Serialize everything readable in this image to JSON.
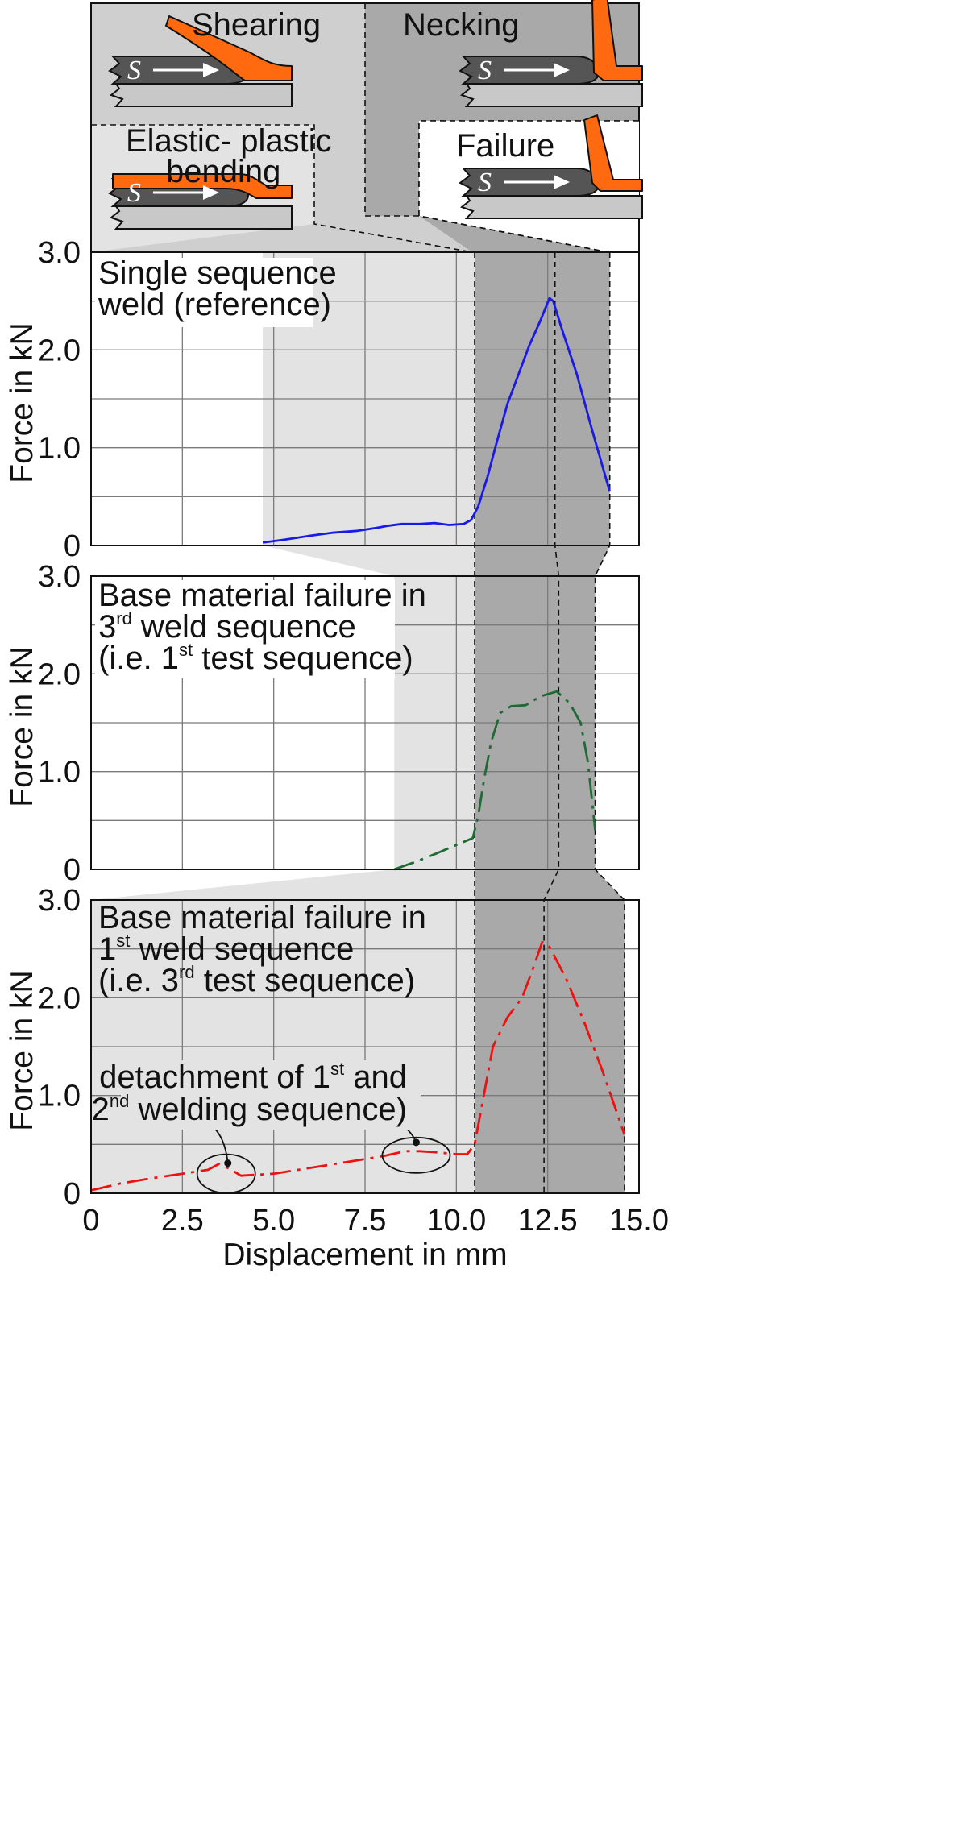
{
  "phases": {
    "shearing": "Shearing",
    "necking": "Necking",
    "bending_line1": "Elastic- plastic",
    "bending_line2": "bending",
    "failure": "Failure",
    "symbol": "S"
  },
  "axes": {
    "ylabel": "Force in kN",
    "xlabel": "Displacement in mm",
    "x_ticks": [
      "0",
      "2.5",
      "5.0",
      "7.5",
      "10.0",
      "12.5",
      "15.0"
    ],
    "y_ticks": [
      "0",
      "1.0",
      "2.0",
      "3.0"
    ]
  },
  "panels": [
    {
      "label_lines": [
        [
          {
            "t": "Single sequence"
          }
        ],
        [
          {
            "t": "weld (reference)"
          }
        ]
      ]
    },
    {
      "label_lines": [
        [
          {
            "t": "Base material failure in"
          }
        ],
        [
          {
            "t": "3"
          },
          {
            "t": "rd",
            "sup": true
          },
          {
            "t": " weld sequence"
          }
        ],
        [
          {
            "t": "(i.e. 1"
          },
          {
            "t": "st",
            "sup": true
          },
          {
            "t": " test sequence)"
          }
        ]
      ]
    },
    {
      "label_lines": [
        [
          {
            "t": "Base material failure in"
          }
        ],
        [
          {
            "t": "1"
          },
          {
            "t": "st",
            "sup": true
          },
          {
            "t": " weld sequence"
          }
        ],
        [
          {
            "t": "(i.e. 3"
          },
          {
            "t": "rd",
            "sup": true
          },
          {
            "t": " test sequence)"
          }
        ]
      ],
      "annotation_lines": [
        [
          {
            "t": "detachment of 1"
          },
          {
            "t": "st",
            "sup": true
          },
          {
            "t": " and"
          }
        ],
        [
          {
            "t": "2"
          },
          {
            "t": "nd",
            "sup": true
          },
          {
            "t": " welding sequence)"
          }
        ]
      ]
    }
  ],
  "colors": {
    "series_blue": "#1a1ae6",
    "series_green": "#1f6b35",
    "series_red": "#ee1111",
    "bending_zone": "#e3e3e3",
    "shearing_zone": "#cfcfcf",
    "necking_zone": "#a9a9a9",
    "failure_zone": "#ffffff",
    "sheet_orange": "#ff6a10",
    "weld_dark": "#555555",
    "base_plate": "#c8c8c8"
  },
  "chart_data": [
    {
      "type": "line",
      "title": "Single sequence weld (reference)",
      "xlabel": "Displacement in mm",
      "ylabel": "Force in kN",
      "xlim": [
        0,
        15
      ],
      "ylim": [
        0,
        3
      ],
      "grid": true,
      "series": [
        {
          "style": "solid",
          "color": "#1a1ae6",
          "points": [
            [
              4.7,
              0.03
            ],
            [
              5.3,
              0.06
            ],
            [
              6.0,
              0.1
            ],
            [
              6.6,
              0.13
            ],
            [
              7.3,
              0.15
            ],
            [
              7.8,
              0.18
            ],
            [
              8.1,
              0.2
            ],
            [
              8.5,
              0.22
            ],
            [
              9.0,
              0.22
            ],
            [
              9.4,
              0.23
            ],
            [
              9.8,
              0.21
            ],
            [
              10.2,
              0.22
            ],
            [
              10.4,
              0.26
            ],
            [
              10.6,
              0.4
            ],
            [
              10.85,
              0.7
            ],
            [
              11.1,
              1.05
            ],
            [
              11.4,
              1.45
            ],
            [
              11.7,
              1.75
            ],
            [
              12.0,
              2.05
            ],
            [
              12.3,
              2.3
            ],
            [
              12.55,
              2.53
            ],
            [
              12.65,
              2.5
            ],
            [
              12.9,
              2.2
            ],
            [
              13.3,
              1.75
            ],
            [
              13.7,
              1.2
            ],
            [
              14.2,
              0.55
            ]
          ]
        }
      ],
      "phase_boundaries_mm": {
        "bending_start": 4.7,
        "necking_start": 10.5,
        "necking_end": 12.7,
        "failure_end": 14.2
      }
    },
    {
      "type": "line",
      "title": "Base material failure in 3rd weld sequence (i.e. 1st test sequence)",
      "xlabel": "Displacement in mm",
      "ylabel": "Force in kN",
      "xlim": [
        0,
        15
      ],
      "ylim": [
        0,
        3
      ],
      "grid": true,
      "series": [
        {
          "style": "dash-dot",
          "color": "#1f6b35",
          "points": [
            [
              8.3,
              0.0
            ],
            [
              8.9,
              0.08
            ],
            [
              9.5,
              0.17
            ],
            [
              10.0,
              0.25
            ],
            [
              10.45,
              0.32
            ],
            [
              10.6,
              0.55
            ],
            [
              10.75,
              0.9
            ],
            [
              10.95,
              1.3
            ],
            [
              11.2,
              1.6
            ],
            [
              11.5,
              1.67
            ],
            [
              11.9,
              1.68
            ],
            [
              12.3,
              1.77
            ],
            [
              12.75,
              1.82
            ],
            [
              13.1,
              1.7
            ],
            [
              13.4,
              1.5
            ],
            [
              13.6,
              1.1
            ],
            [
              13.8,
              0.4
            ]
          ]
        }
      ],
      "phase_boundaries_mm": {
        "bending_start": 8.3,
        "necking_start": 10.5,
        "necking_end": 12.8,
        "failure_end": 13.8
      }
    },
    {
      "type": "line",
      "title": "Base material failure in 1st weld sequence (i.e. 3rd test sequence)",
      "xlabel": "Displacement in mm",
      "ylabel": "Force in kN",
      "xlim": [
        0,
        15
      ],
      "ylim": [
        0,
        3
      ],
      "grid": true,
      "series": [
        {
          "style": "dash-dot",
          "color": "#ee1111",
          "points": [
            [
              0.0,
              0.03
            ],
            [
              0.8,
              0.1
            ],
            [
              1.6,
              0.15
            ],
            [
              2.5,
              0.2
            ],
            [
              3.2,
              0.24
            ],
            [
              3.5,
              0.3
            ],
            [
              3.8,
              0.25
            ],
            [
              4.1,
              0.18
            ],
            [
              5.0,
              0.2
            ],
            [
              6.0,
              0.26
            ],
            [
              7.0,
              0.32
            ],
            [
              8.0,
              0.38
            ],
            [
              8.6,
              0.43
            ],
            [
              9.0,
              0.43
            ],
            [
              9.4,
              0.42
            ],
            [
              10.0,
              0.4
            ],
            [
              10.3,
              0.4
            ],
            [
              10.5,
              0.5
            ],
            [
              10.7,
              0.9
            ],
            [
              11.0,
              1.5
            ],
            [
              11.4,
              1.8
            ],
            [
              11.8,
              2.0
            ],
            [
              12.1,
              2.3
            ],
            [
              12.35,
              2.57
            ],
            [
              12.55,
              2.52
            ],
            [
              13.0,
              2.2
            ],
            [
              13.5,
              1.75
            ],
            [
              14.0,
              1.25
            ],
            [
              14.6,
              0.6
            ]
          ]
        }
      ],
      "annotations": [
        {
          "text": "detachment of 1st and 2nd welding sequence)",
          "targets_mm": [
            [
              3.7,
              0.3
            ],
            [
              8.9,
              0.43
            ]
          ]
        }
      ],
      "phase_boundaries_mm": {
        "bending_start": 0.0,
        "necking_start": 10.5,
        "necking_end": 12.4,
        "failure_end": 14.6
      }
    }
  ]
}
